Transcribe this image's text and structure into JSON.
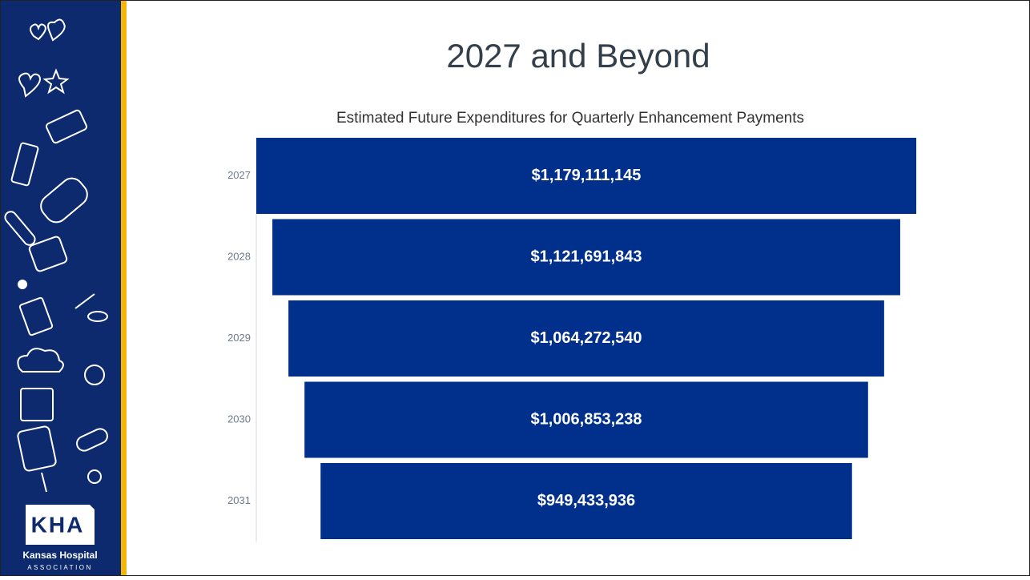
{
  "chart_data": {
    "type": "funnel",
    "title": "2027 and Beyond",
    "subtitle": "Estimated Future Expenditures for Quarterly Enhancement Payments",
    "categories": [
      "2027",
      "2028",
      "2029",
      "2030",
      "2031"
    ],
    "values": [
      1179111145,
      1121691843,
      1064272540,
      1006853238,
      949433936
    ],
    "value_labels": [
      "$1,179,111,145",
      "$1,121,691,843",
      "$1,064,272,540",
      "$1,006,853,238",
      "$949,433,936"
    ],
    "color": "#00308c"
  },
  "logo": {
    "letters": "KHA",
    "name": "Kansas Hospital",
    "tagline": "ASSOCIATION"
  }
}
